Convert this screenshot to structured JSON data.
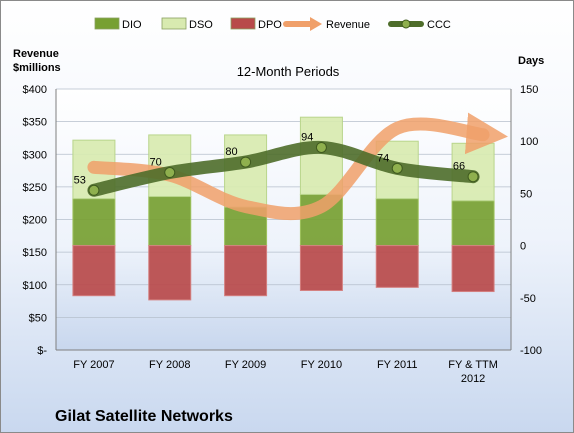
{
  "chart_data": {
    "type": "bar",
    "title": "12-Month Periods",
    "company": "Gilat Satellite Networks",
    "left_axis_title": [
      "Revenue",
      "$millions"
    ],
    "right_axis_title": "Days",
    "left_ticks": [
      "$400",
      "$350",
      "$300",
      "$250",
      "$200",
      "$150",
      "$100",
      "$50",
      "$-"
    ],
    "right_ticks": [
      "150",
      "100",
      "50",
      "0",
      "-50",
      "-100"
    ],
    "left_range": [
      0,
      400
    ],
    "right_range": [
      -100,
      150
    ],
    "categories": [
      [
        "FY 2007"
      ],
      [
        "FY 2008"
      ],
      [
        "FY 2009"
      ],
      [
        "FY 2010"
      ],
      [
        "FY 2011"
      ],
      [
        "FY & TTM",
        "2012"
      ]
    ],
    "legend": [
      "DIO",
      "DSO",
      "DPO",
      "Revenue",
      "CCC"
    ],
    "series": [
      {
        "name": "DIO",
        "axis": "right",
        "color": "#77a032",
        "values": [
          45,
          47,
          37,
          49,
          45,
          43
        ]
      },
      {
        "name": "DSO",
        "axis": "right",
        "color": "#d8eab0",
        "values": [
          56,
          59,
          69,
          74,
          55,
          55
        ]
      },
      {
        "name": "DPO",
        "axis": "right",
        "color": "#b84a4a",
        "values": [
          -48,
          -52,
          -48,
          -43,
          -40,
          -44
        ]
      },
      {
        "name": "Revenue",
        "axis": "left",
        "color": "#f0a06a",
        "values": [
          280,
          268,
          220,
          220,
          340,
          330
        ]
      },
      {
        "name": "CCC",
        "axis": "right",
        "color": "#4e6d2a",
        "values": [
          53,
          70,
          80,
          94,
          74,
          66
        ]
      }
    ],
    "ccc_labels": [
      "53",
      "70",
      "80",
      "94",
      "74",
      "66"
    ]
  }
}
